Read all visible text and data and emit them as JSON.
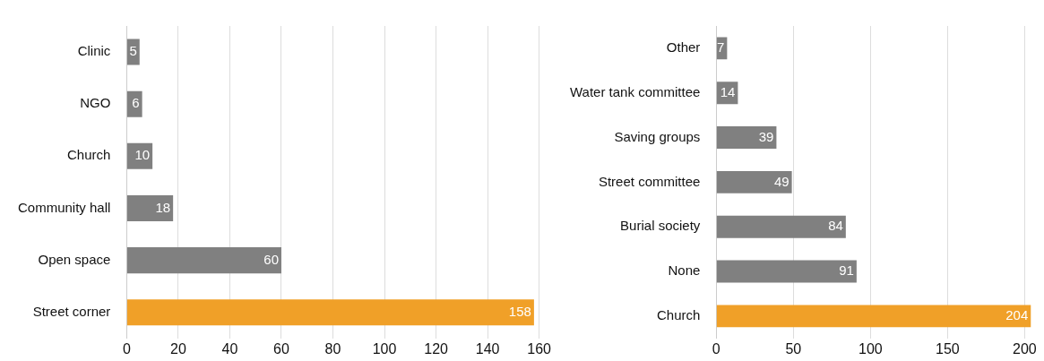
{
  "chart_data": [
    {
      "type": "bar",
      "orientation": "horizontal",
      "categories": [
        "Clinic",
        "NGO",
        "Church",
        "Community hall",
        "Open space",
        "Street corner"
      ],
      "values": [
        5,
        6,
        10,
        18,
        60,
        158
      ],
      "colors": [
        "#808080",
        "#808080",
        "#808080",
        "#808080",
        "#808080",
        "#f0a028"
      ],
      "xlim": [
        0,
        160
      ],
      "xticks": [
        0,
        20,
        40,
        60,
        80,
        100,
        120,
        140,
        160
      ],
      "grid": "x",
      "data_labels": true,
      "legend": false
    },
    {
      "type": "bar",
      "orientation": "horizontal",
      "categories": [
        "Other",
        "Water tank committee",
        "Saving groups",
        "Street committee",
        "Burial society",
        "None",
        "Church"
      ],
      "values": [
        7,
        14,
        39,
        49,
        84,
        91,
        204
      ],
      "colors": [
        "#808080",
        "#808080",
        "#808080",
        "#808080",
        "#808080",
        "#808080",
        "#f0a028"
      ],
      "xlim": [
        0,
        205
      ],
      "xticks": [
        0,
        50,
        100,
        150,
        200
      ],
      "grid": "x",
      "data_labels": true,
      "legend": false
    }
  ]
}
